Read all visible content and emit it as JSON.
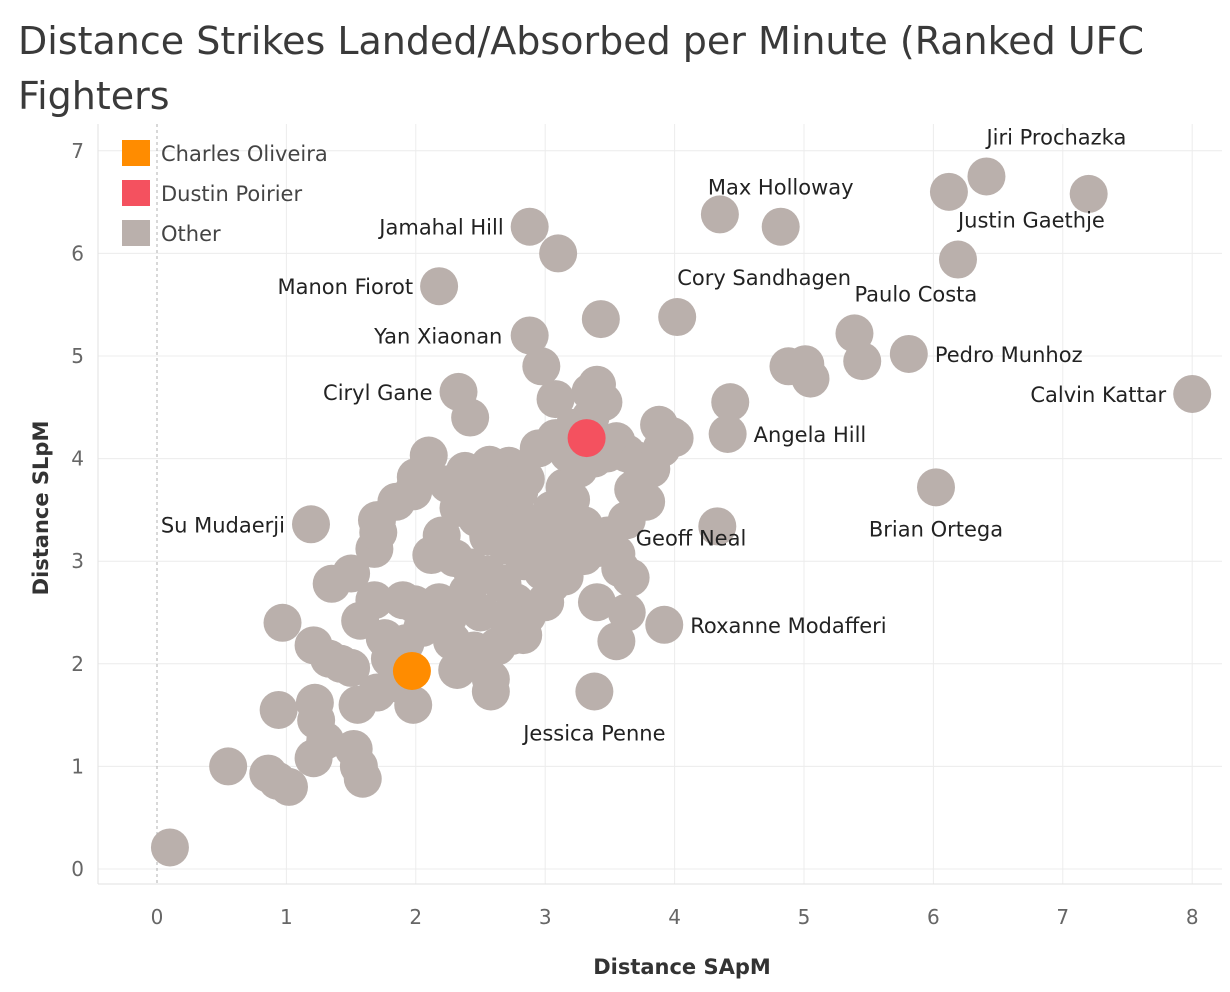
{
  "colors": {
    "oliveira": "#ff8c00",
    "poirier": "#f4515f",
    "other": "#bab0ac"
  },
  "chart_data": {
    "type": "scatter",
    "title": "Distance Strikes Landed/Absorbed per Minute (Ranked UFC Fighters",
    "xlabel": "Distance SApM",
    "ylabel": "Distance SLpM",
    "xlim": [
      -0.45,
      8.15
    ],
    "ylim": [
      -0.15,
      7.25
    ],
    "x_ticks": [
      0,
      1,
      2,
      3,
      4,
      5,
      6,
      7,
      8
    ],
    "y_ticks": [
      0,
      1,
      2,
      3,
      4,
      5,
      6,
      7
    ],
    "grid": true,
    "zero_line": "x",
    "legend_position": "top-left",
    "legend": [
      {
        "label": "Charles Oliveira",
        "color": "#ff8c00"
      },
      {
        "label": "Dustin Poirier",
        "color": "#f4515f"
      },
      {
        "label": "Other",
        "color": "#bab0ac"
      }
    ],
    "highlighted": [
      {
        "name": "Charles Oliveira",
        "x": 1.97,
        "y": 1.93,
        "color": "#ff8c00"
      },
      {
        "name": "Dustin Poirier",
        "x": 3.32,
        "y": 4.2,
        "color": "#f4515f"
      }
    ],
    "labeled_points": [
      {
        "name": "Jiri Prochazka",
        "x": 6.41,
        "y": 6.75,
        "anchor": "above-right"
      },
      {
        "name": "Max Holloway",
        "x": 4.82,
        "y": 6.26,
        "anchor": "above"
      },
      {
        "name": "Justin Gaethje",
        "x": 6.19,
        "y": 5.94,
        "anchor": "above-right"
      },
      {
        "name": "Jamahal Hill",
        "x": 2.88,
        "y": 6.26,
        "anchor": "left"
      },
      {
        "name": "Manon Fiorot",
        "x": 2.18,
        "y": 5.68,
        "anchor": "left"
      },
      {
        "name": "Cory Sandhagen",
        "x": 4.02,
        "y": 5.38,
        "anchor": "above-right"
      },
      {
        "name": "Paulo Costa",
        "x": 5.39,
        "y": 5.22,
        "anchor": "above-right"
      },
      {
        "name": "Yan Xiaonan",
        "x": 2.87,
        "y": 5.2,
        "anchor": "left"
      },
      {
        "name": "Pedro Munhoz",
        "x": 5.81,
        "y": 5.02,
        "anchor": "right"
      },
      {
        "name": "Calvin Kattar",
        "x": 8.0,
        "y": 4.63,
        "anchor": "left"
      },
      {
        "name": "Ciryl Gane",
        "x": 2.33,
        "y": 4.65,
        "anchor": "left"
      },
      {
        "name": "Angela Hill",
        "x": 4.41,
        "y": 4.24,
        "anchor": "right"
      },
      {
        "name": "Brian Ortega",
        "x": 6.02,
        "y": 3.72,
        "anchor": "below"
      },
      {
        "name": "Su Mudaerji",
        "x": 1.19,
        "y": 3.36,
        "anchor": "left"
      },
      {
        "name": "Geoff Neal",
        "x": 3.7,
        "y": 2.84,
        "anchor": "above-right"
      },
      {
        "name": "Roxanne Modafferi",
        "x": 3.92,
        "y": 2.38,
        "anchor": "right"
      },
      {
        "name": "Jessica Penne",
        "x": 3.38,
        "y": 1.73,
        "anchor": "below"
      }
    ],
    "other_points": [
      [
        0.1,
        0.21
      ],
      [
        0.55,
        1.0
      ],
      [
        0.86,
        0.93
      ],
      [
        0.93,
        0.86
      ],
      [
        1.02,
        0.8
      ],
      [
        0.97,
        2.4
      ],
      [
        0.94,
        1.55
      ],
      [
        1.22,
        1.62
      ],
      [
        1.23,
        1.45
      ],
      [
        1.21,
        1.08
      ],
      [
        1.3,
        1.25
      ],
      [
        1.52,
        1.17
      ],
      [
        1.56,
        1.0
      ],
      [
        1.59,
        0.88
      ],
      [
        1.21,
        2.18
      ],
      [
        1.33,
        2.05
      ],
      [
        1.42,
        2.0
      ],
      [
        1.5,
        1.96
      ],
      [
        1.55,
        1.6
      ],
      [
        1.7,
        1.72
      ],
      [
        1.88,
        1.8
      ],
      [
        1.98,
        1.6
      ],
      [
        1.35,
        2.78
      ],
      [
        1.5,
        2.88
      ],
      [
        1.57,
        2.42
      ],
      [
        1.68,
        2.62
      ],
      [
        1.76,
        2.25
      ],
      [
        1.9,
        2.62
      ],
      [
        1.99,
        2.58
      ],
      [
        2.08,
        2.52
      ],
      [
        2.18,
        2.6
      ],
      [
        2.28,
        2.22
      ],
      [
        2.32,
        1.94
      ],
      [
        2.45,
        2.13
      ],
      [
        2.58,
        1.85
      ],
      [
        2.58,
        1.73
      ],
      [
        2.63,
        2.17
      ],
      [
        2.74,
        2.27
      ],
      [
        2.83,
        2.28
      ],
      [
        2.86,
        2.47
      ],
      [
        2.77,
        2.6
      ],
      [
        2.67,
        2.78
      ],
      [
        2.55,
        2.87
      ],
      [
        2.42,
        2.94
      ],
      [
        2.3,
        3.03
      ],
      [
        2.12,
        3.06
      ],
      [
        1.68,
        3.12
      ],
      [
        1.71,
        3.28
      ],
      [
        1.7,
        3.4
      ],
      [
        1.85,
        3.58
      ],
      [
        1.98,
        3.68
      ],
      [
        2.0,
        3.82
      ],
      [
        2.1,
        4.03
      ],
      [
        2.38,
        3.88
      ],
      [
        2.57,
        3.94
      ],
      [
        2.72,
        3.93
      ],
      [
        2.85,
        3.8
      ],
      [
        2.33,
        3.52
      ],
      [
        2.47,
        3.42
      ],
      [
        2.56,
        3.24
      ],
      [
        2.7,
        3.15
      ],
      [
        2.84,
        3.0
      ],
      [
        2.98,
        2.9
      ],
      [
        3.05,
        2.78
      ],
      [
        3.09,
        3.0
      ],
      [
        3.18,
        3.25
      ],
      [
        3.3,
        3.35
      ],
      [
        3.42,
        3.13
      ],
      [
        3.55,
        3.07
      ],
      [
        3.58,
        2.93
      ],
      [
        3.66,
        2.84
      ],
      [
        3.4,
        2.6
      ],
      [
        3.63,
        2.5
      ],
      [
        3.55,
        2.22
      ],
      [
        3.38,
        1.73
      ],
      [
        2.45,
        3.62
      ],
      [
        2.6,
        3.55
      ],
      [
        2.75,
        3.45
      ],
      [
        2.92,
        3.37
      ],
      [
        3.05,
        3.5
      ],
      [
        3.15,
        3.72
      ],
      [
        3.26,
        3.9
      ],
      [
        3.38,
        4.0
      ],
      [
        3.48,
        4.05
      ],
      [
        3.55,
        4.17
      ],
      [
        3.63,
        4.05
      ],
      [
        3.72,
        3.98
      ],
      [
        3.82,
        3.9
      ],
      [
        3.9,
        4.1
      ],
      [
        3.98,
        4.22
      ],
      [
        3.88,
        4.33
      ],
      [
        4.0,
        4.2
      ],
      [
        3.68,
        3.7
      ],
      [
        3.78,
        3.58
      ],
      [
        3.63,
        3.4
      ],
      [
        2.95,
        4.1
      ],
      [
        3.08,
        4.2
      ],
      [
        3.18,
        4.05
      ],
      [
        3.22,
        4.3
      ],
      [
        3.35,
        4.4
      ],
      [
        3.45,
        4.55
      ],
      [
        3.35,
        4.65
      ],
      [
        3.4,
        4.72
      ],
      [
        3.08,
        4.58
      ],
      [
        2.97,
        4.9
      ],
      [
        2.88,
        5.2
      ],
      [
        3.43,
        5.36
      ],
      [
        3.1,
        6.0
      ],
      [
        2.88,
        6.26
      ],
      [
        2.42,
        4.4
      ],
      [
        2.33,
        4.65
      ],
      [
        2.18,
        5.68
      ],
      [
        4.35,
        6.38
      ],
      [
        4.82,
        6.26
      ],
      [
        4.02,
        5.38
      ],
      [
        4.41,
        4.24
      ],
      [
        4.43,
        4.55
      ],
      [
        4.33,
        3.34
      ],
      [
        3.92,
        2.38
      ],
      [
        4.88,
        4.9
      ],
      [
        5.01,
        4.92
      ],
      [
        5.05,
        4.78
      ],
      [
        5.39,
        5.22
      ],
      [
        5.45,
        4.95
      ],
      [
        5.81,
        5.02
      ],
      [
        6.02,
        3.72
      ],
      [
        6.12,
        6.6
      ],
      [
        6.41,
        6.75
      ],
      [
        7.2,
        6.58
      ],
      [
        6.19,
        5.94
      ],
      [
        8.0,
        4.63
      ],
      [
        1.19,
        3.36
      ],
      [
        2.95,
        3.2
      ],
      [
        2.65,
        3.32
      ],
      [
        2.2,
        3.25
      ],
      [
        2.4,
        2.7
      ],
      [
        1.92,
        2.2
      ],
      [
        1.8,
        2.05
      ],
      [
        2.05,
        2.35
      ],
      [
        2.25,
        2.45
      ],
      [
        2.5,
        2.5
      ],
      [
        2.7,
        2.45
      ],
      [
        3.0,
        2.6
      ],
      [
        3.15,
        2.85
      ],
      [
        3.3,
        3.05
      ],
      [
        3.48,
        3.25
      ],
      [
        3.2,
        3.6
      ],
      [
        2.8,
        3.68
      ],
      [
        2.6,
        3.8
      ],
      [
        2.25,
        3.75
      ]
    ]
  }
}
